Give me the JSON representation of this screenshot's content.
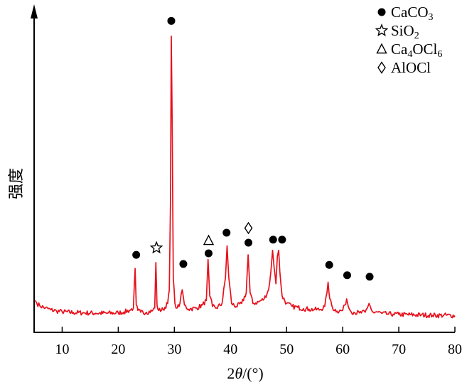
{
  "chart_data": {
    "type": "line",
    "xlabel_parts": [
      "2",
      "θ",
      "/(°)"
    ],
    "ylabel": "强度",
    "x_ticks": [
      10,
      20,
      30,
      40,
      50,
      60,
      70,
      80
    ],
    "xlim": [
      5,
      80
    ],
    "ylim": [
      0,
      100
    ],
    "grid": false,
    "y_tick_labels": false,
    "series": [
      {
        "color": "#e8101b",
        "baseline": 5.5,
        "x": [
          5.2,
          5.5,
          6,
          7,
          8,
          9,
          10,
          12,
          14,
          16,
          18,
          20,
          21,
          22,
          22.7,
          23.0,
          23.2,
          23.5,
          24,
          25,
          26,
          26.5,
          26.7,
          26.9,
          27.2,
          28,
          28.8,
          29.1,
          29.3,
          29.45,
          29.6,
          29.8,
          30.1,
          30.5,
          31.0,
          31.4,
          31.8,
          32.5,
          33,
          34,
          35,
          35.7,
          36.0,
          36.3,
          36.8,
          37.5,
          38.5,
          39.1,
          39.4,
          39.7,
          40.2,
          41,
          42,
          42.8,
          43.15,
          43.5,
          44,
          45,
          46,
          46.8,
          47.2,
          47.5,
          47.8,
          48.1,
          48.35,
          48.6,
          48.8,
          49.2,
          50,
          51,
          52,
          53,
          54,
          55,
          56,
          56.8,
          57.2,
          57.4,
          57.7,
          58.2,
          59,
          60,
          60.4,
          60.7,
          61.0,
          61.4,
          62,
          63,
          64,
          64.4,
          64.7,
          65.1,
          65.6,
          66,
          67,
          68,
          69,
          70,
          72,
          74,
          76,
          78,
          80
        ],
        "y": [
          10.5,
          9.5,
          8.8,
          8.0,
          7.4,
          7.0,
          6.8,
          6.5,
          6.4,
          6.3,
          6.3,
          6.4,
          6.7,
          7.2,
          8.0,
          21.0,
          9.0,
          7.2,
          6.6,
          6.6,
          7.0,
          8.0,
          23.0,
          9.0,
          7.2,
          7.5,
          9.5,
          14.0,
          42.0,
          97.5,
          70.0,
          18.0,
          9.5,
          8.0,
          9.5,
          14.0,
          9.0,
          7.6,
          7.8,
          8.0,
          9.0,
          10.5,
          24.0,
          12.0,
          8.5,
          8.0,
          9.5,
          18.0,
          28.5,
          18.0,
          9.5,
          8.5,
          9.5,
          13.0,
          25.5,
          13.0,
          9.5,
          10.0,
          11.0,
          14.0,
          20.0,
          27.0,
          21.0,
          16.0,
          25.0,
          27.0,
          20.0,
          12.0,
          9.5,
          8.5,
          8.2,
          7.8,
          7.6,
          7.5,
          7.5,
          8.5,
          13.0,
          16.5,
          11.0,
          8.0,
          7.0,
          7.2,
          9.0,
          11.0,
          8.5,
          7.0,
          6.6,
          6.4,
          6.6,
          8.0,
          9.5,
          7.5,
          6.4,
          6.8,
          6.2,
          6.0,
          6.0,
          5.9,
          5.8,
          5.7,
          5.6,
          5.6,
          5.5
        ]
      }
    ],
    "peak_markers": [
      {
        "symbol": "circle",
        "x": 23.2,
        "y": 25.5
      },
      {
        "symbol": "star",
        "x": 26.8,
        "y": 27.8
      },
      {
        "symbol": "circle",
        "x": 29.45,
        "y": 102.5
      },
      {
        "symbol": "circle",
        "x": 31.6,
        "y": 22.5
      },
      {
        "symbol": "circle",
        "x": 36.1,
        "y": 26.0
      },
      {
        "symbol": "triangle",
        "x": 36.1,
        "y": 30.2
      },
      {
        "symbol": "circle",
        "x": 39.3,
        "y": 32.8
      },
      {
        "symbol": "circle",
        "x": 43.2,
        "y": 29.5
      },
      {
        "symbol": "diamond",
        "x": 43.2,
        "y": 34.3
      },
      {
        "symbol": "circle",
        "x": 47.6,
        "y": 30.5
      },
      {
        "symbol": "circle",
        "x": 49.2,
        "y": 30.5
      },
      {
        "symbol": "circle",
        "x": 57.6,
        "y": 22.2
      },
      {
        "symbol": "circle",
        "x": 60.8,
        "y": 18.8
      },
      {
        "symbol": "circle",
        "x": 64.8,
        "y": 18.3
      }
    ],
    "legend": {
      "placement": "top-right",
      "entries": [
        {
          "symbol": "circle",
          "label_main": "CaCO",
          "label_sub": "3",
          "label_tail": ""
        },
        {
          "symbol": "star",
          "label_main": "SiO",
          "label_sub": "2",
          "label_tail": ""
        },
        {
          "symbol": "triangle",
          "label_main": "Ca",
          "label_sub": "4",
          "label_tail": "OCl",
          "label_sub2": "6"
        },
        {
          "symbol": "diamond",
          "label_main": "AlOCl",
          "label_sub": "",
          "label_tail": ""
        }
      ]
    }
  }
}
